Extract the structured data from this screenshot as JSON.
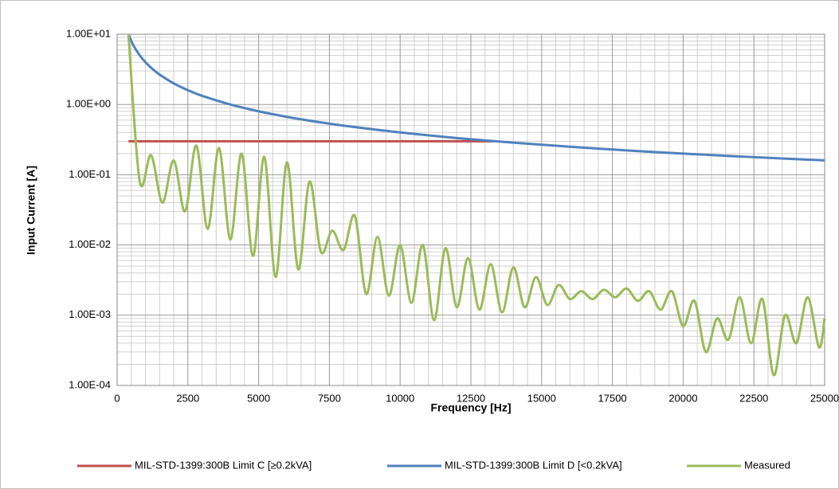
{
  "chart_data": {
    "type": "line",
    "log_y": true,
    "grid": true,
    "minor_grid": true,
    "xlabel": "Frequency [Hz]",
    "ylabel": "Input Current [A]",
    "xlim": [
      0,
      25000
    ],
    "xticks": [
      0,
      2500,
      5000,
      7500,
      10000,
      12500,
      15000,
      17500,
      20000,
      22500,
      25000
    ],
    "ylim": [
      0.0001,
      10
    ],
    "yticks": [
      {
        "value": 0.0001,
        "label": "1.00E-04"
      },
      {
        "value": 0.001,
        "label": "1.00E-03"
      },
      {
        "value": 0.01,
        "label": "1.00E-02"
      },
      {
        "value": 0.1,
        "label": "1.00E-01"
      },
      {
        "value": 1,
        "label": "1.00E+00"
      },
      {
        "value": 10,
        "label": "1.00E+01"
      }
    ],
    "series": [
      {
        "name": "MIL-STD-1399:300B Limit C [≥0.2kVA]",
        "color": "#c0504d",
        "x": [
          400,
          13300
        ],
        "values": [
          0.3,
          0.3
        ]
      },
      {
        "name": "MIL-STD-1399:300B Limit D [<0.2kVA]",
        "color": "#4f81bd",
        "x": [
          400,
          500,
          600,
          800,
          1000,
          1250,
          1500,
          2000,
          2500,
          3000,
          4000,
          5000,
          6000,
          7000,
          8000,
          10000,
          12000,
          14000,
          16000,
          18000,
          20000,
          22500,
          25000
        ],
        "values": [
          10,
          8,
          6.67,
          5,
          4,
          3.2,
          2.67,
          2,
          1.6,
          1.33,
          1,
          0.8,
          0.667,
          0.571,
          0.5,
          0.4,
          0.333,
          0.286,
          0.25,
          0.222,
          0.2,
          0.178,
          0.16
        ]
      },
      {
        "name": "Measured",
        "color": "#9bbb59",
        "x": [
          400,
          800,
          1200,
          1600,
          2000,
          2400,
          2800,
          3200,
          3600,
          4000,
          4400,
          4800,
          5200,
          5600,
          6000,
          6400,
          6800,
          7200,
          7600,
          8000,
          8400,
          8800,
          9200,
          9600,
          10000,
          10400,
          10800,
          11200,
          11600,
          12000,
          12400,
          12800,
          13200,
          13600,
          14000,
          14400,
          14800,
          15200,
          15600,
          16000,
          16400,
          16800,
          17200,
          17600,
          18000,
          18400,
          18800,
          19200,
          19600,
          20000,
          20400,
          20800,
          21200,
          21600,
          22000,
          22400,
          22800,
          23200,
          23600,
          24000,
          24400,
          24800,
          25000
        ],
        "values": [
          10,
          0.08,
          0.19,
          0.04,
          0.16,
          0.03,
          0.26,
          0.017,
          0.24,
          0.012,
          0.2,
          0.007,
          0.18,
          0.0035,
          0.15,
          0.0045,
          0.08,
          0.008,
          0.016,
          0.0085,
          0.026,
          0.002,
          0.013,
          0.0019,
          0.01,
          0.0015,
          0.01,
          0.00085,
          0.009,
          0.0013,
          0.0065,
          0.0012,
          0.0053,
          0.0011,
          0.0048,
          0.0013,
          0.0035,
          0.0014,
          0.0027,
          0.0017,
          0.0022,
          0.0017,
          0.0023,
          0.0018,
          0.0024,
          0.0016,
          0.0022,
          0.0012,
          0.0022,
          0.0007,
          0.0016,
          0.0003,
          0.0009,
          0.00045,
          0.0018,
          0.0004,
          0.0017,
          0.00014,
          0.001,
          0.0004,
          0.0018,
          0.00035,
          0.0009
        ]
      }
    ]
  }
}
